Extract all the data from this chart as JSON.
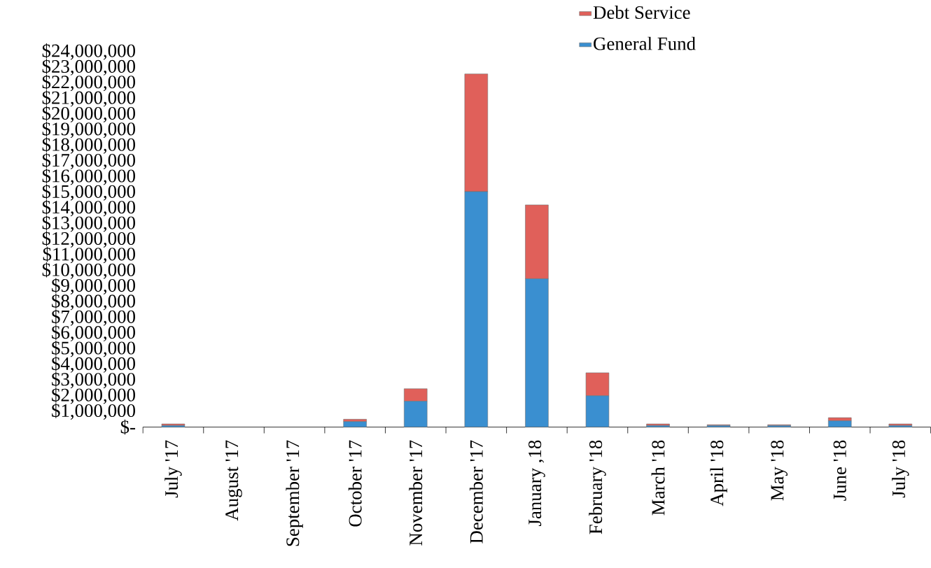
{
  "chart_data": {
    "type": "bar",
    "stacked": true,
    "legend": "top",
    "categories": [
      "July '17",
      "August '17",
      "September '17",
      "October '17",
      "November '17",
      "December '17",
      "January ,18",
      "February '18",
      "March '18",
      "April '18",
      "May '18",
      "June '18",
      "July '18"
    ],
    "series": [
      {
        "name": "General Fund",
        "color": "#3a8fd0",
        "values": [
          100000,
          0,
          0,
          350000,
          1650000,
          15050000,
          9480000,
          2000000,
          100000,
          100000,
          100000,
          400000,
          100000
        ]
      },
      {
        "name": "Debt Service",
        "color": "#e0605a",
        "values": [
          100000,
          0,
          0,
          150000,
          800000,
          7520000,
          4720000,
          1470000,
          100000,
          50000,
          50000,
          200000,
          100000
        ]
      }
    ],
    "ylim": [
      0,
      24000000
    ],
    "yticks": [
      {
        "value": 0,
        "label": "$-"
      },
      {
        "value": 1000000,
        "label": "$1,000,000"
      },
      {
        "value": 2000000,
        "label": "$2,000,000"
      },
      {
        "value": 3000000,
        "label": "$3,000,000"
      },
      {
        "value": 4000000,
        "label": "$4,000,000"
      },
      {
        "value": 5000000,
        "label": "$5,000,000"
      },
      {
        "value": 6000000,
        "label": "$6,000,000"
      },
      {
        "value": 7000000,
        "label": "$7,000,000"
      },
      {
        "value": 8000000,
        "label": "$8,000,000"
      },
      {
        "value": 9000000,
        "label": "$9,000,000"
      },
      {
        "value": 10000000,
        "label": "$10,000,000"
      },
      {
        "value": 11000000,
        "label": "$11,000,000"
      },
      {
        "value": 12000000,
        "label": "$12,000,000"
      },
      {
        "value": 13000000,
        "label": "$13,000,000"
      },
      {
        "value": 14000000,
        "label": "$14,000,000"
      },
      {
        "value": 15000000,
        "label": "$15,000,000"
      },
      {
        "value": 16000000,
        "label": "$16,000,000"
      },
      {
        "value": 17000000,
        "label": "$17,000,000"
      },
      {
        "value": 18000000,
        "label": "$18,000,000"
      },
      {
        "value": 19000000,
        "label": "$19,000,000"
      },
      {
        "value": 20000000,
        "label": "$20,000,000"
      },
      {
        "value": 21000000,
        "label": "$21,000,000"
      },
      {
        "value": 22000000,
        "label": "$22,000,000"
      },
      {
        "value": 23000000,
        "label": "$23,000,000"
      },
      {
        "value": 24000000,
        "label": "$24,000,000"
      }
    ]
  }
}
